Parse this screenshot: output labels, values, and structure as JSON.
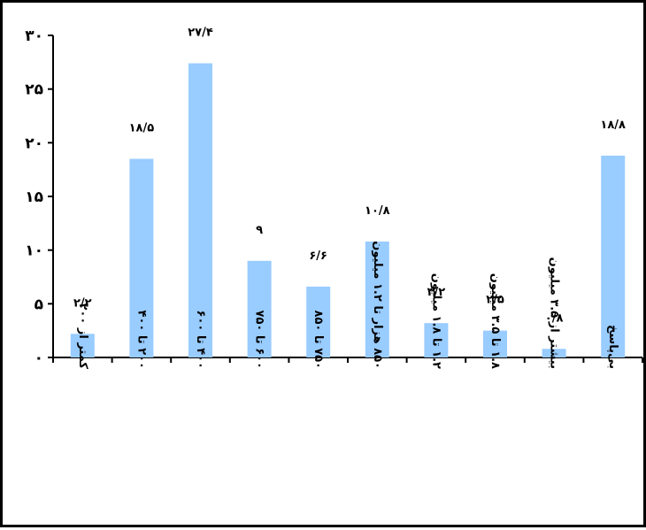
{
  "chart_data": {
    "type": "bar",
    "categories": [
      "کمتر از ۲۰۰",
      "۲۰۰ تا ۴۰۰",
      "۴۰۰ تا ۶۰۰",
      "۶۰۰ تا ۷۵۰",
      "۷۵۰ تا ۸۵۰",
      "۸۵۰ هزار تا ۱.۲ میلیون",
      "۱.۲ تا ۱.۸ میلیون",
      "۱.۸ تا ۳.۵ میلیون",
      "بیشتر از ۳.۵ میلیون",
      "بی‌پاسخ"
    ],
    "values": [
      2.2,
      18.5,
      27.4,
      9,
      6.6,
      10.8,
      3.2,
      2.5,
      0.8,
      18.8
    ],
    "data_labels": [
      "۲/۲",
      "۱۸/۵",
      "۲۷/۴",
      "۹",
      "۶/۶",
      "۱۰/۸",
      "۳/۲",
      "۲/۵",
      "۰/۸",
      "۱۸/۸"
    ],
    "ylim": [
      0,
      30
    ],
    "yticks": [
      {
        "value": 0,
        "label": "۰"
      },
      {
        "value": 5,
        "label": "۵"
      },
      {
        "value": 10,
        "label": "۱۰"
      },
      {
        "value": 15,
        "label": "۱۵"
      },
      {
        "value": 20,
        "label": "۲۰"
      },
      {
        "value": 25,
        "label": "۲۵"
      },
      {
        "value": 30,
        "label": "۳۰"
      }
    ],
    "title": "",
    "xlabel": "",
    "ylabel": "",
    "grid": false,
    "legend": "none",
    "bar_color": "#99CCFF"
  }
}
